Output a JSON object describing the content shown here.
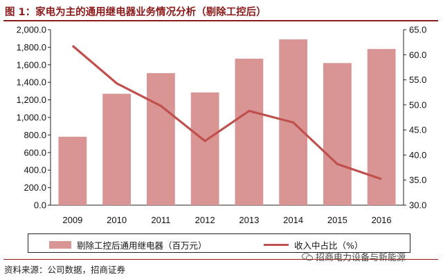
{
  "title": "图 1：家电为主的通用继电器业务情况分析（剔除工控后）",
  "source": "资料来源：公司数据，招商证券",
  "watermark": "招商电力设备与新能源",
  "colors": {
    "bar": "#d99594",
    "line": "#c0504d",
    "title": "#8b1a1a"
  },
  "chart_data": {
    "type": "bar",
    "categories": [
      "2009",
      "2010",
      "2011",
      "2012",
      "2013",
      "2014",
      "2015",
      "2016"
    ],
    "series": [
      {
        "name": "剔除工控后通用继电器（百万元）",
        "type": "bar",
        "axis": "left",
        "values": [
          780,
          1270,
          1505,
          1285,
          1670,
          1890,
          1620,
          1780
        ]
      },
      {
        "name": "收入中占比（%）",
        "type": "line",
        "axis": "right",
        "values": [
          61.8,
          54.3,
          49.8,
          42.8,
          48.8,
          46.5,
          38.2,
          35.2
        ]
      }
    ],
    "y_left": {
      "lim": [
        0,
        2000
      ],
      "ticks": [
        "0.0",
        "200.0",
        "400.0",
        "600.0",
        "800.0",
        "1,000.0",
        "1,200.0",
        "1,400.0",
        "1,600.0",
        "1,800.0",
        "2,000.0"
      ]
    },
    "y_right": {
      "lim": [
        30,
        65
      ],
      "ticks": [
        "30.0",
        "35.0",
        "40.0",
        "45.0",
        "50.0",
        "55.0",
        "60.0",
        "65.0"
      ]
    },
    "legend_position": "bottom"
  }
}
